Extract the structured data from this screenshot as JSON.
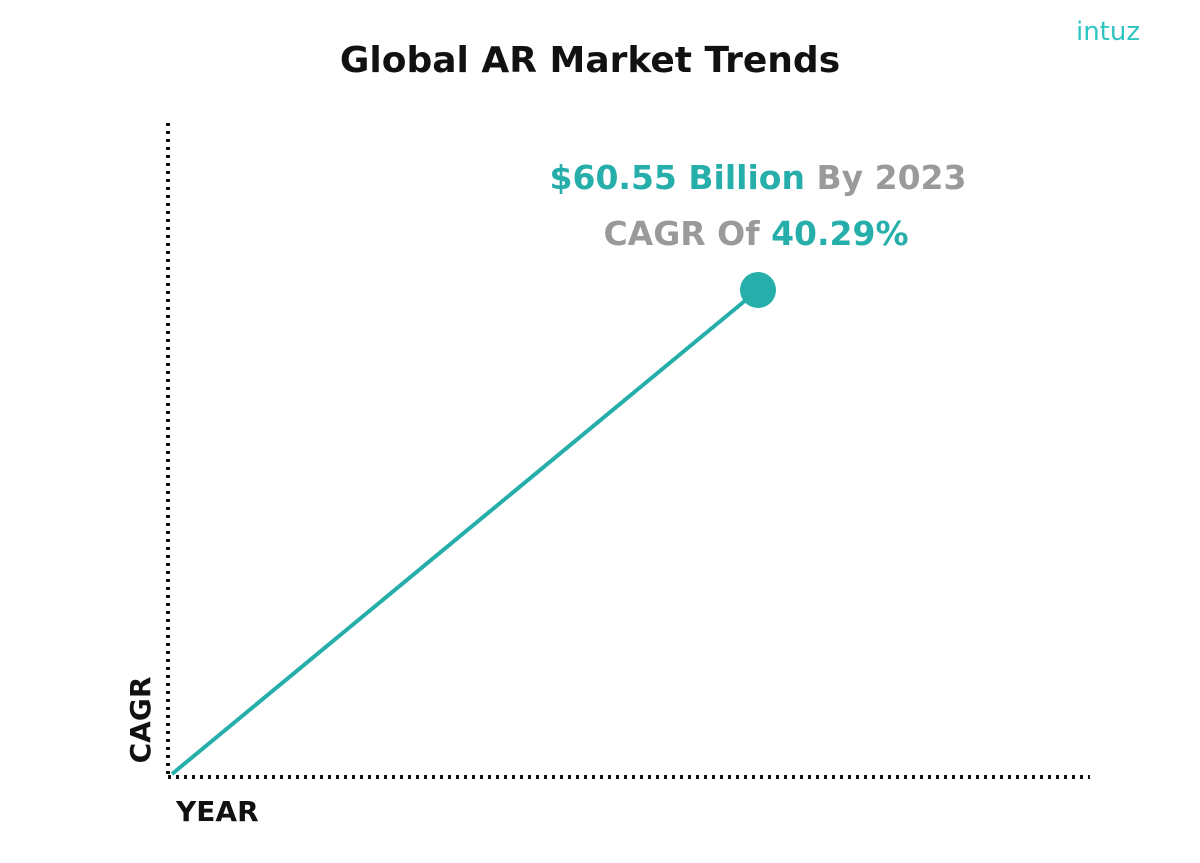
{
  "header": {
    "title": "Global AR Market Trends",
    "logo": "intuz"
  },
  "annotation": {
    "value": "$60.55 Billion",
    "value_suffix": "By 2023",
    "rate_prefix": "CAGR Of",
    "rate": "40.29%"
  },
  "axes": {
    "y_label": "CAGR",
    "x_label": "YEAR"
  }
}
